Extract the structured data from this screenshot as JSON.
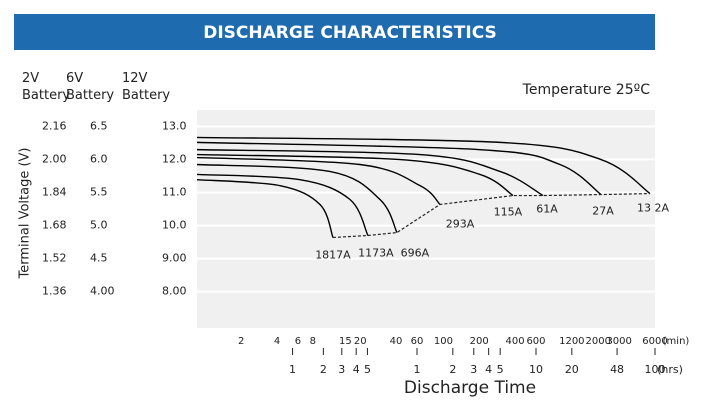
{
  "chart_data": {
    "type": "line",
    "title": "DISCHARGE CHARACTERISTICS",
    "annotation": "Temperature 25ºC",
    "y_axis_label": "Terminal Voltage (V)",
    "x_axis_label": "Discharge Time",
    "column_headers": [
      "2V Battery",
      "6V Battery",
      "12V Battery"
    ],
    "y_2v_ticks": [
      2.16,
      {
        "value": 2,
        "label": "2.00"
      },
      1.84,
      1.68,
      1.52,
      1.36
    ],
    "y_6v_ticks": [
      6.5,
      {
        "value": 6,
        "label": "6.0"
      },
      5.5,
      {
        "value": 5,
        "label": "5.0"
      },
      4.5,
      {
        "value": 4,
        "label": "4.00"
      }
    ],
    "ylim": [
      6.9,
      13.5
    ],
    "yticks": [
      {
        "value": 13,
        "label": "13.0"
      },
      {
        "value": 12,
        "label": "12.0"
      },
      {
        "value": 11,
        "label": "11.0"
      },
      {
        "value": 10,
        "label": "10.0"
      },
      {
        "value": 9,
        "label": "9.00"
      },
      {
        "value": 8,
        "label": "8.00"
      }
    ],
    "log_x": true,
    "xlim": [
      0.85,
      6000
    ],
    "xticks": [
      2,
      4,
      6,
      8,
      15,
      20,
      40,
      60,
      100,
      200,
      400,
      600,
      1200,
      2000,
      3000,
      6000
    ],
    "x_unit": "(min)",
    "x2ticks": [
      {
        "value": 5.4,
        "label": "1"
      },
      {
        "value": 9.8,
        "label": "2"
      },
      {
        "value": 14,
        "label": "3"
      },
      {
        "value": 18.5,
        "label": "4"
      },
      {
        "value": 23,
        "label": "5"
      },
      {
        "value": 60,
        "label": "1"
      },
      {
        "value": 120,
        "label": "2"
      },
      {
        "value": 180,
        "label": "3"
      },
      {
        "value": 240,
        "label": "4"
      },
      {
        "value": 300,
        "label": "5"
      },
      {
        "value": 600,
        "label": "10"
      },
      {
        "value": 1200,
        "label": "20"
      },
      {
        "value": 2880,
        "label": "48"
      },
      {
        "value": 6000,
        "label": "100"
      }
    ],
    "x2_unit": "(hrs)",
    "grid": true,
    "color": "#000000",
    "series": [
      {
        "name": "1817A",
        "x": [
          0.85,
          4.24,
          9.18,
          11.8
        ],
        "values": [
          11.39,
          11.21,
          10.64,
          9.64
        ]
      },
      {
        "name": "1173A",
        "x": [
          0.85,
          6.24,
          16.4,
          23.2
        ],
        "values": [
          11.55,
          11.39,
          10.79,
          9.7
        ]
      },
      {
        "name": "696A",
        "x": [
          0.85,
          11.1,
          29.3,
          40.7
        ],
        "values": [
          11.85,
          11.64,
          10.79,
          9.79
        ]
      },
      {
        "name": "293A",
        "x": [
          0.85,
          19.9,
          63.6,
          93.6
        ],
        "values": [
          12.06,
          11.85,
          11.21,
          10.64
        ]
      },
      {
        "name": "115A",
        "x": [
          0.85,
          43.2,
          203,
          384
        ],
        "values": [
          12.15,
          12.0,
          11.55,
          10.91
        ]
      },
      {
        "name": "61A",
        "x": [
          0.85,
          63.6,
          299,
          687
        ],
        "values": [
          12.3,
          12.15,
          11.64,
          10.91
        ]
      },
      {
        "name": "27A",
        "x": [
          0.85,
          203,
          953,
          2110
        ],
        "values": [
          12.52,
          12.3,
          11.85,
          10.94
        ]
      },
      {
        "name": "13 2A",
        "x": [
          0.85,
          299,
          2110,
          5450
        ],
        "values": [
          12.67,
          12.52,
          12.0,
          10.97
        ]
      }
    ]
  }
}
